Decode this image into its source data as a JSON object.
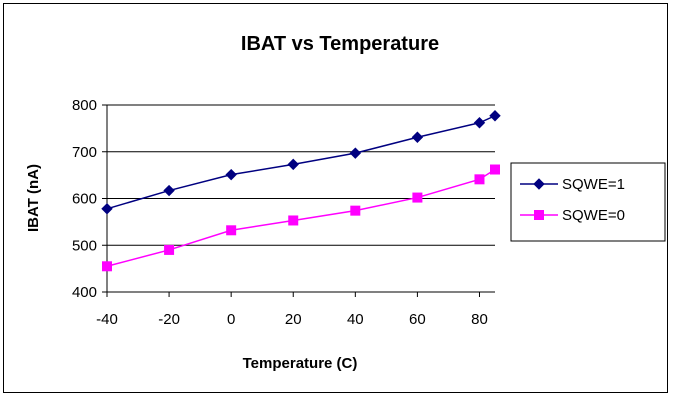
{
  "chart_data": {
    "type": "line",
    "title": "IBAT vs Temperature",
    "xlabel": "Temperature (C)",
    "ylabel": "IBAT (nA)",
    "xlim": [
      -40,
      85
    ],
    "ylim": [
      400,
      800
    ],
    "xticks": [
      -40,
      -20,
      0,
      20,
      40,
      60,
      80
    ],
    "yticks": [
      400,
      500,
      600,
      700,
      800
    ],
    "grid": "horizontal",
    "legend_position": "right",
    "series": [
      {
        "name": "SQWE=1",
        "color": "#000080",
        "marker": "diamond",
        "x": [
          -40,
          -20,
          0,
          20,
          40,
          60,
          80,
          85
        ],
        "y": [
          578,
          617,
          651,
          673,
          697,
          731,
          762,
          777
        ]
      },
      {
        "name": "SQWE=0",
        "color": "#FF00FF",
        "marker": "square",
        "x": [
          -40,
          -20,
          0,
          20,
          40,
          60,
          80,
          85
        ],
        "y": [
          455,
          490,
          532,
          553,
          574,
          602,
          641,
          662
        ]
      }
    ]
  }
}
